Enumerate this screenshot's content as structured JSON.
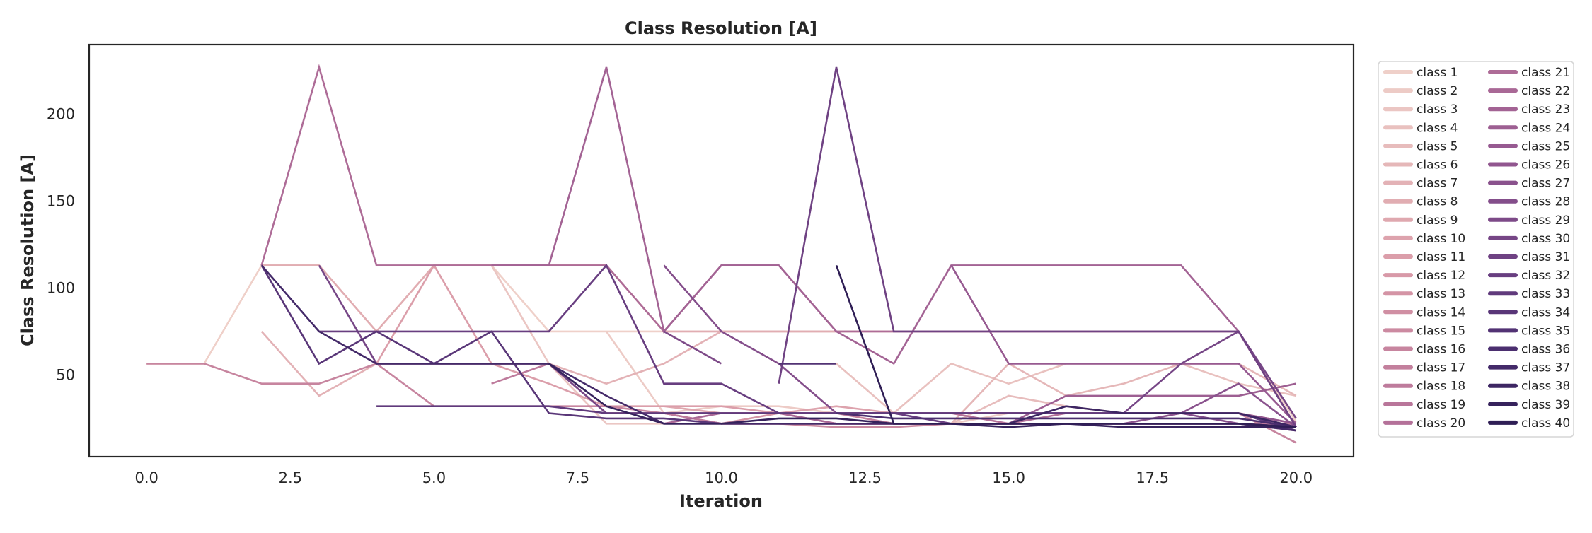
{
  "chart_data": {
    "type": "line",
    "title": "Class Resolution [A]",
    "xlabel": "Iteration",
    "ylabel": "Class Resolution [A]",
    "xlim": [
      -1,
      21
    ],
    "ylim": [
      3,
      240
    ],
    "xticks": [
      0.0,
      2.5,
      5.0,
      7.5,
      10.0,
      12.5,
      15.0,
      17.5,
      20.0
    ],
    "xtick_labels": [
      "0.0",
      "2.5",
      "5.0",
      "7.5",
      "10.0",
      "12.5",
      "15.0",
      "17.5",
      "20.0"
    ],
    "yticks": [
      50,
      100,
      150,
      200
    ],
    "ytick_labels": [
      "50",
      "100",
      "150",
      "200"
    ],
    "grid": false,
    "legend": {
      "placement": "outside-right",
      "columns": 2
    },
    "series": [
      {
        "name": "class 1",
        "color": "#efd0c9",
        "x": [
          0,
          1,
          2,
          3,
          4,
          5,
          6,
          7,
          8,
          9,
          10,
          11,
          12,
          13,
          14,
          15,
          16,
          17,
          18,
          19,
          20
        ],
        "y": [
          56.5,
          56.5,
          113,
          113,
          75,
          113,
          113,
          75,
          75,
          75,
          75,
          75,
          75,
          75,
          75,
          75,
          75,
          75,
          75,
          75,
          23
        ]
      },
      {
        "name": "class 2",
        "color": "#edcbc6",
        "x": [
          8,
          9,
          10,
          11,
          12,
          13,
          14,
          15,
          16,
          17,
          18,
          19,
          20
        ],
        "y": [
          75,
          28,
          32,
          32,
          28,
          22,
          22,
          28,
          28,
          28,
          28,
          28,
          22
        ]
      },
      {
        "name": "class 3",
        "color": "#ebc6c3",
        "x": [
          6,
          7,
          8,
          9,
          10,
          11,
          12,
          13,
          14,
          15,
          16,
          17,
          18,
          19,
          20
        ],
        "y": [
          113,
          56.5,
          22,
          22,
          22,
          22,
          22,
          22,
          22,
          22,
          22,
          22,
          22,
          22,
          22
        ]
      },
      {
        "name": "class 4",
        "color": "#e9c1bf",
        "x": [
          12,
          13,
          14,
          15,
          16,
          17,
          18,
          19,
          20
        ],
        "y": [
          56.5,
          28,
          56.5,
          45,
          56.5,
          56.5,
          56.5,
          45,
          38
        ]
      },
      {
        "name": "class 5",
        "color": "#e7bcbc",
        "x": [
          13,
          14,
          15,
          16,
          17,
          18,
          19,
          20
        ],
        "y": [
          22,
          22,
          38,
          32,
          28,
          28,
          28,
          22
        ]
      },
      {
        "name": "class 6",
        "color": "#e5b7b8",
        "x": [
          14,
          15,
          16,
          17,
          18,
          19,
          20
        ],
        "y": [
          22,
          56.5,
          38,
          45,
          56.5,
          56.5,
          38
        ]
      },
      {
        "name": "class 7",
        "color": "#e3b2b6",
        "x": [
          2,
          3,
          4,
          5,
          6,
          7,
          8,
          9,
          10,
          11,
          12,
          13,
          14,
          15,
          16,
          17,
          18,
          19,
          20
        ],
        "y": [
          75,
          38,
          56.5,
          56.5,
          56.5,
          56.5,
          45,
          56.5,
          75,
          75,
          75,
          75,
          75,
          75,
          75,
          75,
          75,
          75,
          20
        ]
      },
      {
        "name": "class 8",
        "color": "#e1adb2",
        "x": [
          2,
          3,
          4,
          5,
          6,
          7,
          8,
          9,
          10,
          11,
          12,
          13,
          14,
          15,
          16,
          17,
          18,
          19,
          20
        ],
        "y": [
          113,
          113,
          75,
          113,
          113,
          113,
          113,
          75,
          75,
          75,
          75,
          75,
          75,
          75,
          75,
          75,
          75,
          75,
          20
        ]
      },
      {
        "name": "class 9",
        "color": "#dfa8af",
        "x": [
          9,
          10,
          11,
          12,
          13,
          14,
          15,
          16,
          17,
          18,
          19,
          20
        ],
        "y": [
          32,
          28,
          28,
          28,
          28,
          28,
          28,
          28,
          28,
          28,
          28,
          22
        ]
      },
      {
        "name": "class 10",
        "color": "#dda3ad",
        "x": [
          10,
          11,
          12,
          13,
          14,
          15,
          16,
          17,
          18,
          19,
          20
        ],
        "y": [
          28,
          28,
          32,
          28,
          28,
          28,
          28,
          28,
          28,
          28,
          20
        ]
      },
      {
        "name": "class 11",
        "color": "#db9eaa",
        "x": [
          4,
          5,
          6,
          7,
          8,
          9,
          10,
          11,
          12,
          13,
          14,
          15,
          16,
          17,
          18,
          19,
          20
        ],
        "y": [
          56.5,
          113,
          56.5,
          45,
          32,
          32,
          32,
          28,
          28,
          28,
          28,
          28,
          28,
          28,
          28,
          28,
          22
        ]
      },
      {
        "name": "class 12",
        "color": "#d899a8",
        "x": [
          9,
          10,
          11,
          12,
          13,
          14,
          15,
          16,
          17,
          18,
          19,
          20
        ],
        "y": [
          28,
          22,
          22,
          22,
          22,
          22,
          22,
          22,
          22,
          22,
          22,
          20
        ]
      },
      {
        "name": "class 13",
        "color": "#d494a5",
        "x": [
          10,
          11,
          12,
          13,
          14,
          15,
          16,
          17,
          18,
          19,
          20
        ],
        "y": [
          22,
          28,
          22,
          22,
          22,
          22,
          22,
          22,
          22,
          22,
          20
        ]
      },
      {
        "name": "class 14",
        "color": "#d08fa3",
        "x": [
          8,
          9,
          10,
          11,
          12,
          13,
          14,
          15,
          16,
          17,
          18,
          19,
          20
        ],
        "y": [
          28,
          28,
          22,
          22,
          22,
          22,
          22,
          22,
          22,
          22,
          22,
          22,
          20
        ]
      },
      {
        "name": "class 15",
        "color": "#cc8aa1",
        "x": [
          11,
          12,
          13,
          14,
          15,
          16,
          17,
          18,
          19,
          20
        ],
        "y": [
          22,
          20,
          20,
          22,
          22,
          22,
          22,
          22,
          22,
          18
        ]
      },
      {
        "name": "class 16",
        "color": "#c7859f",
        "x": [
          0,
          1,
          2,
          3,
          4,
          5,
          6,
          7,
          8,
          9,
          10,
          11,
          12,
          13,
          14,
          15,
          16,
          17,
          18,
          19,
          20
        ],
        "y": [
          56.5,
          56.5,
          45,
          45,
          56.5,
          32,
          32,
          32,
          32,
          28,
          28,
          28,
          28,
          28,
          28,
          28,
          28,
          28,
          28,
          28,
          11
        ]
      },
      {
        "name": "class 17",
        "color": "#c3809d",
        "x": [
          11,
          12,
          13,
          14,
          15,
          16,
          17,
          18,
          19,
          20
        ],
        "y": [
          28,
          28,
          22,
          22,
          22,
          22,
          22,
          22,
          22,
          22
        ]
      },
      {
        "name": "class 18",
        "color": "#be7b9c",
        "x": [
          6,
          7,
          8,
          9,
          10,
          11,
          12,
          13,
          14,
          15,
          16,
          17,
          18,
          19,
          20
        ],
        "y": [
          45,
          56.5,
          28,
          28,
          22,
          22,
          22,
          22,
          22,
          22,
          22,
          22,
          22,
          22,
          20
        ]
      },
      {
        "name": "class 19",
        "color": "#b9769a",
        "x": [
          12,
          13,
          14,
          15,
          16,
          17,
          18,
          19,
          20
        ],
        "y": [
          22,
          22,
          22,
          22,
          22,
          22,
          22,
          22,
          22
        ]
      },
      {
        "name": "class 20",
        "color": "#b47199",
        "x": [
          13,
          14,
          15,
          16,
          17,
          18,
          19,
          20
        ],
        "y": [
          28,
          28,
          22,
          28,
          28,
          28,
          28,
          20
        ]
      },
      {
        "name": "class 21",
        "color": "#ae6c97",
        "x": [
          2,
          3,
          4,
          5,
          6,
          7,
          8,
          9,
          10,
          11,
          12,
          13,
          14,
          15,
          16,
          17,
          18,
          19,
          20
        ],
        "y": [
          113,
          227,
          113,
          113,
          113,
          113,
          113,
          75,
          113,
          113,
          75,
          75,
          75,
          75,
          75,
          75,
          75,
          75,
          20
        ]
      },
      {
        "name": "class 22",
        "color": "#a96896",
        "x": [
          9,
          10,
          11,
          12,
          13,
          14,
          15,
          16,
          17,
          18,
          19,
          20
        ],
        "y": [
          22,
          28,
          28,
          22,
          22,
          22,
          22,
          22,
          22,
          22,
          22,
          18
        ]
      },
      {
        "name": "class 23",
        "color": "#a36394",
        "x": [
          6,
          7,
          8,
          9,
          10,
          11,
          12,
          13,
          14,
          15,
          16,
          17,
          18,
          19,
          20
        ],
        "y": [
          113,
          113,
          227,
          75,
          113,
          113,
          75,
          56.5,
          113,
          113,
          113,
          113,
          113,
          75,
          20
        ]
      },
      {
        "name": "class 24",
        "color": "#9d5f92",
        "x": [
          14,
          15,
          16,
          17,
          18,
          19,
          20
        ],
        "y": [
          22,
          22,
          38,
          38,
          38,
          38,
          45
        ]
      },
      {
        "name": "class 25",
        "color": "#975a91",
        "x": [
          14,
          15,
          16,
          17,
          18,
          19,
          20
        ],
        "y": [
          113,
          56.5,
          56.5,
          56.5,
          56.5,
          56.5,
          22
        ]
      },
      {
        "name": "class 26",
        "color": "#91568f",
        "x": [
          12,
          13,
          14,
          15,
          16,
          17,
          18,
          19,
          20
        ],
        "y": [
          28,
          28,
          28,
          28,
          28,
          28,
          28,
          28,
          22
        ]
      },
      {
        "name": "class 27",
        "color": "#8a528d",
        "x": [
          15,
          16,
          17,
          18,
          19,
          20
        ],
        "y": [
          22,
          22,
          22,
          28,
          45,
          20
        ]
      },
      {
        "name": "class 28",
        "color": "#844e8b",
        "x": [
          9,
          10,
          11,
          12,
          13,
          14,
          15,
          16,
          17,
          18,
          19,
          20
        ],
        "y": [
          113,
          75,
          56.5,
          28,
          28,
          28,
          28,
          28,
          28,
          28,
          22,
          20
        ]
      },
      {
        "name": "class 29",
        "color": "#7d4a88",
        "x": [
          9,
          10
        ],
        "y": [
          75,
          56.5
        ]
      },
      {
        "name": "class 30",
        "color": "#764686",
        "x": [
          3,
          4,
          5,
          6,
          7,
          8,
          9,
          10,
          11,
          12,
          13,
          14,
          15,
          16,
          17,
          18,
          19,
          20
        ],
        "y": [
          113,
          56.5,
          56.5,
          56.5,
          56.5,
          28,
          28,
          28,
          28,
          28,
          28,
          28,
          28,
          28,
          28,
          56.5,
          75,
          25
        ]
      },
      {
        "name": "class 31",
        "color": "#6f4283",
        "x": [
          11,
          12,
          13,
          14,
          15,
          16,
          17,
          18,
          19,
          20
        ],
        "y": [
          45,
          227,
          75,
          75,
          75,
          75,
          75,
          75,
          75,
          20
        ]
      },
      {
        "name": "class 32",
        "color": "#683e80",
        "x": [
          3,
          4,
          5,
          6,
          7,
          8,
          9,
          10,
          11,
          12,
          13,
          14,
          15,
          16,
          17,
          18,
          19,
          20
        ],
        "y": [
          75,
          75,
          75,
          75,
          75,
          113,
          45,
          45,
          28,
          28,
          28,
          22,
          22,
          22,
          22,
          22,
          22,
          20
        ]
      },
      {
        "name": "class 33",
        "color": "#603a7c",
        "x": [
          4,
          5,
          6,
          7,
          8,
          9,
          10,
          11,
          12,
          13,
          14,
          15,
          16,
          17,
          18,
          19,
          20
        ],
        "y": [
          32,
          32,
          32,
          32,
          28,
          28,
          28,
          28,
          28,
          28,
          28,
          28,
          28,
          28,
          28,
          28,
          18
        ]
      },
      {
        "name": "class 34",
        "color": "#593678",
        "x": [
          2,
          3,
          4,
          5,
          6,
          7,
          8,
          9,
          10,
          11,
          12,
          13,
          14,
          15,
          16,
          17,
          18,
          19,
          20
        ],
        "y": [
          113,
          56.5,
          75,
          56.5,
          75,
          28,
          25,
          25,
          22,
          22,
          22,
          22,
          22,
          22,
          22,
          22,
          22,
          22,
          20
        ]
      },
      {
        "name": "class 35",
        "color": "#523274",
        "x": [
          11,
          12
        ],
        "y": [
          56.5,
          56.5
        ]
      },
      {
        "name": "class 36",
        "color": "#4b2e6f",
        "x": [
          12,
          13,
          14,
          15,
          16,
          17,
          18,
          19,
          20
        ],
        "y": [
          28,
          25,
          25,
          25,
          25,
          25,
          25,
          25,
          20
        ]
      },
      {
        "name": "class 37",
        "color": "#442a69",
        "x": [
          2,
          3,
          4,
          5,
          6,
          7,
          8,
          9,
          10,
          11,
          12,
          13,
          14,
          15,
          16,
          17,
          18,
          19,
          20
        ],
        "y": [
          113,
          75,
          56.5,
          56.5,
          56.5,
          56.5,
          38,
          22,
          22,
          22,
          22,
          22,
          22,
          22,
          22,
          22,
          22,
          22,
          18
        ]
      },
      {
        "name": "class 38",
        "color": "#3d2663",
        "x": [
          14,
          15,
          16,
          17,
          18,
          19,
          20
        ],
        "y": [
          22,
          22,
          32,
          28,
          28,
          28,
          20
        ]
      },
      {
        "name": "class 39",
        "color": "#36225c",
        "x": [
          7,
          8,
          9,
          10,
          11,
          12,
          13,
          14,
          15,
          16,
          17,
          18,
          19,
          20
        ],
        "y": [
          56.5,
          32,
          22,
          22,
          25,
          25,
          22,
          22,
          20,
          22,
          20,
          20,
          20,
          20
        ]
      },
      {
        "name": "class 40",
        "color": "#2f1e55",
        "x": [
          12,
          13,
          14,
          15,
          16,
          17,
          18,
          19,
          20
        ],
        "y": [
          113,
          22,
          22,
          22,
          22,
          22,
          22,
          22,
          20
        ]
      }
    ]
  }
}
